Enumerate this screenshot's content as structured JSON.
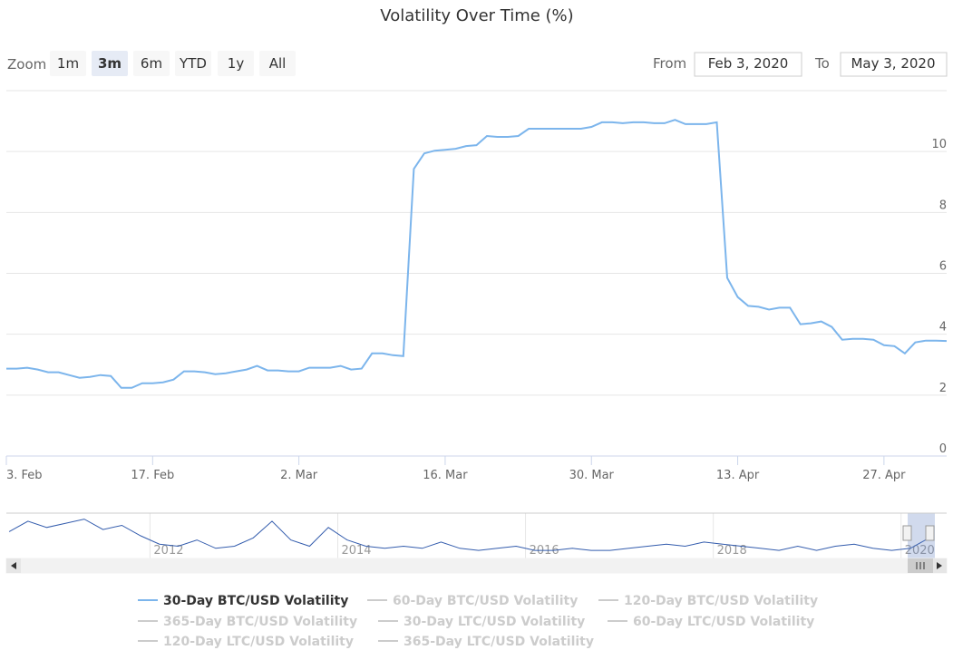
{
  "range_selector": {
    "zoom_label": "Zoom",
    "buttons": [
      "1m",
      "3m",
      "6m",
      "YTD",
      "1y",
      "All"
    ],
    "selected": 1,
    "from_label": "From",
    "from_value": "Feb 3, 2020",
    "to_label": "To",
    "to_value": "May 3, 2020"
  },
  "chart_data": [
    {
      "type": "line",
      "title": "Volatility Over Time (%)",
      "x": [
        "2020-02-03",
        "2020-02-04",
        "2020-02-05",
        "2020-02-06",
        "2020-02-07",
        "2020-02-08",
        "2020-02-09",
        "2020-02-10",
        "2020-02-11",
        "2020-02-12",
        "2020-02-13",
        "2020-02-14",
        "2020-02-15",
        "2020-02-16",
        "2020-02-17",
        "2020-02-18",
        "2020-02-19",
        "2020-02-20",
        "2020-02-21",
        "2020-02-22",
        "2020-02-23",
        "2020-02-24",
        "2020-02-25",
        "2020-02-26",
        "2020-02-27",
        "2020-02-28",
        "2020-02-29",
        "2020-03-01",
        "2020-03-02",
        "2020-03-03",
        "2020-03-04",
        "2020-03-05",
        "2020-03-06",
        "2020-03-07",
        "2020-03-08",
        "2020-03-09",
        "2020-03-10",
        "2020-03-11",
        "2020-03-12",
        "2020-03-13",
        "2020-03-14",
        "2020-03-15",
        "2020-03-16",
        "2020-03-17",
        "2020-03-18",
        "2020-03-19",
        "2020-03-20",
        "2020-03-21",
        "2020-03-22",
        "2020-03-23",
        "2020-03-24",
        "2020-03-25",
        "2020-03-26",
        "2020-03-27",
        "2020-03-28",
        "2020-03-29",
        "2020-03-30",
        "2020-03-31",
        "2020-04-01",
        "2020-04-02",
        "2020-04-03",
        "2020-04-04",
        "2020-04-05",
        "2020-04-06",
        "2020-04-07",
        "2020-04-08",
        "2020-04-09",
        "2020-04-10",
        "2020-04-11",
        "2020-04-12",
        "2020-04-13",
        "2020-04-14",
        "2020-04-15",
        "2020-04-16",
        "2020-04-17",
        "2020-04-18",
        "2020-04-19",
        "2020-04-20",
        "2020-04-21",
        "2020-04-22",
        "2020-04-23",
        "2020-04-24",
        "2020-04-25",
        "2020-04-26",
        "2020-04-27",
        "2020-04-28",
        "2020-04-29",
        "2020-04-30",
        "2020-05-01",
        "2020-05-02",
        "2020-05-03"
      ],
      "series": [
        {
          "name": "30-Day BTC/USD Volatility",
          "color": "#7cb5ec",
          "visible": true,
          "values": [
            2.87,
            2.87,
            2.9,
            2.84,
            2.75,
            2.75,
            2.66,
            2.57,
            2.6,
            2.66,
            2.63,
            2.24,
            2.24,
            2.39,
            2.39,
            2.42,
            2.51,
            2.78,
            2.78,
            2.75,
            2.69,
            2.72,
            2.78,
            2.84,
            2.96,
            2.81,
            2.81,
            2.78,
            2.78,
            2.9,
            2.9,
            2.9,
            2.96,
            2.84,
            2.87,
            3.37,
            3.37,
            3.31,
            3.28,
            9.43,
            9.94,
            10.03,
            10.06,
            10.09,
            10.18,
            10.21,
            10.51,
            10.48,
            10.48,
            10.51,
            10.75,
            10.75,
            10.75,
            10.75,
            10.75,
            10.75,
            10.81,
            10.96,
            10.96,
            10.93,
            10.96,
            10.96,
            10.93,
            10.93,
            11.04,
            10.9,
            10.9,
            10.9,
            10.96,
            5.85,
            5.22,
            4.93,
            4.9,
            4.81,
            4.87,
            4.87,
            4.33,
            4.36,
            4.42,
            4.24,
            3.82,
            3.85,
            3.85,
            3.82,
            3.64,
            3.61,
            3.37,
            3.73,
            3.79,
            3.79,
            3.78
          ]
        },
        {
          "name": "60-Day BTC/USD Volatility",
          "visible": false
        },
        {
          "name": "120-Day BTC/USD Volatility",
          "visible": false
        },
        {
          "name": "365-Day BTC/USD Volatility",
          "visible": false
        },
        {
          "name": "30-Day LTC/USD Volatility",
          "visible": false
        },
        {
          "name": "60-Day LTC/USD Volatility",
          "visible": false
        },
        {
          "name": "120-Day LTC/USD Volatility",
          "visible": false
        },
        {
          "name": "365-Day LTC/USD Volatility",
          "visible": false
        }
      ],
      "xlim": [
        "2020-02-03",
        "2020-05-03"
      ],
      "xticks": [
        {
          "value": "2020-02-03",
          "label": "3. Feb"
        },
        {
          "value": "2020-02-17",
          "label": "17. Feb"
        },
        {
          "value": "2020-03-02",
          "label": "2. Mar"
        },
        {
          "value": "2020-03-16",
          "label": "16. Mar"
        },
        {
          "value": "2020-03-30",
          "label": "30. Mar"
        },
        {
          "value": "2020-04-13",
          "label": "13. Apr"
        },
        {
          "value": "2020-04-27",
          "label": "27. Apr"
        }
      ],
      "ylim": [
        0,
        12
      ],
      "yticks": [
        0,
        2,
        4,
        6,
        8,
        10
      ],
      "grid": true
    },
    {
      "type": "line",
      "color": "#335cad",
      "x": [
        2010.5,
        2010.7,
        2010.9,
        2011.1,
        2011.3,
        2011.5,
        2011.7,
        2011.9,
        2012.1,
        2012.3,
        2012.5,
        2012.7,
        2012.9,
        2013.1,
        2013.3,
        2013.5,
        2013.7,
        2013.9,
        2014.1,
        2014.3,
        2014.5,
        2014.7,
        2014.9,
        2015.1,
        2015.3,
        2015.5,
        2015.7,
        2015.9,
        2016.1,
        2016.3,
        2016.5,
        2016.7,
        2016.9,
        2017.1,
        2017.3,
        2017.5,
        2017.7,
        2017.9,
        2018.1,
        2018.3,
        2018.5,
        2018.7,
        2018.9,
        2019.1,
        2019.3,
        2019.5,
        2019.7,
        2019.9,
        2020.1,
        2020.3
      ],
      "values": [
        12,
        17,
        14,
        16,
        18,
        13,
        15,
        10,
        6,
        5,
        8,
        4,
        5,
        9,
        17,
        8,
        5,
        14,
        8,
        5,
        4,
        5,
        4,
        7,
        4,
        3,
        4,
        5,
        3,
        3,
        4,
        3,
        3,
        4,
        5,
        6,
        5,
        7,
        6,
        5,
        4,
        3,
        5,
        3,
        5,
        6,
        4,
        3,
        4,
        9
      ],
      "xlim": [
        2010.47,
        2020.36
      ],
      "xticks": [
        2012,
        2014,
        2016,
        2018,
        2020
      ],
      "ylim": [
        0,
        20
      ]
    }
  ]
}
